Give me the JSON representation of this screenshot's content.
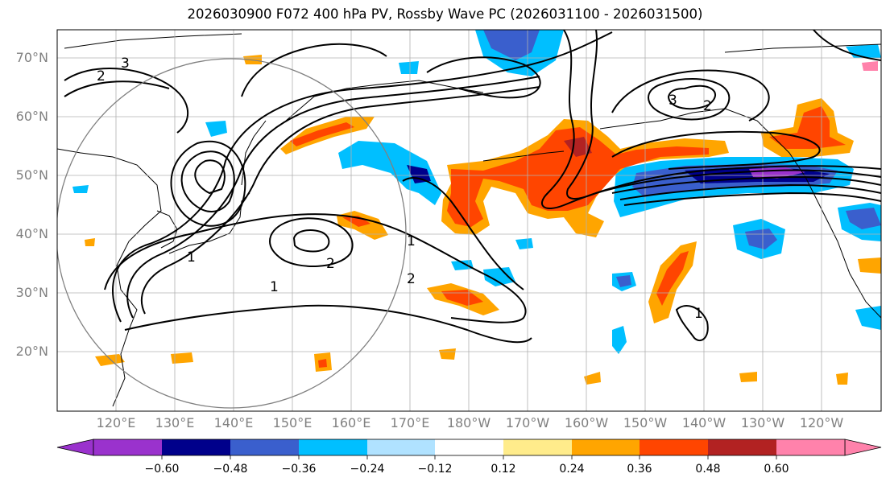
{
  "title": "2026030900 F072 400 hPa PV, Rossby Wave PC (2026031100 - 2026031500)",
  "lat_labels": [
    "70°N",
    "60°N",
    "50°N",
    "40°N",
    "30°N",
    "20°N"
  ],
  "lon_labels": [
    "120°E",
    "130°E",
    "140°E",
    "150°E",
    "160°E",
    "170°E",
    "180°W",
    "170°W",
    "160°W",
    "150°W",
    "140°W",
    "130°W",
    "120°W"
  ],
  "colorbar": {
    "colors": [
      "#9a32cd",
      "#00008b",
      "#3a5fcd",
      "#00bfff",
      "#b0e2ff",
      "#ffffff",
      "#ffec8b",
      "#ffa500",
      "#ff4500",
      "#b22222",
      "#ff82ab"
    ],
    "tick_labels": [
      "−0.60",
      "−0.48",
      "−0.36",
      "−0.24",
      "−0.12",
      "0.12",
      "0.24",
      "0.36",
      "0.48",
      "0.60"
    ]
  },
  "contour_labels": [
    "1",
    "2",
    "3",
    "2",
    "1",
    "2",
    "1",
    "3",
    "2",
    "1"
  ]
}
